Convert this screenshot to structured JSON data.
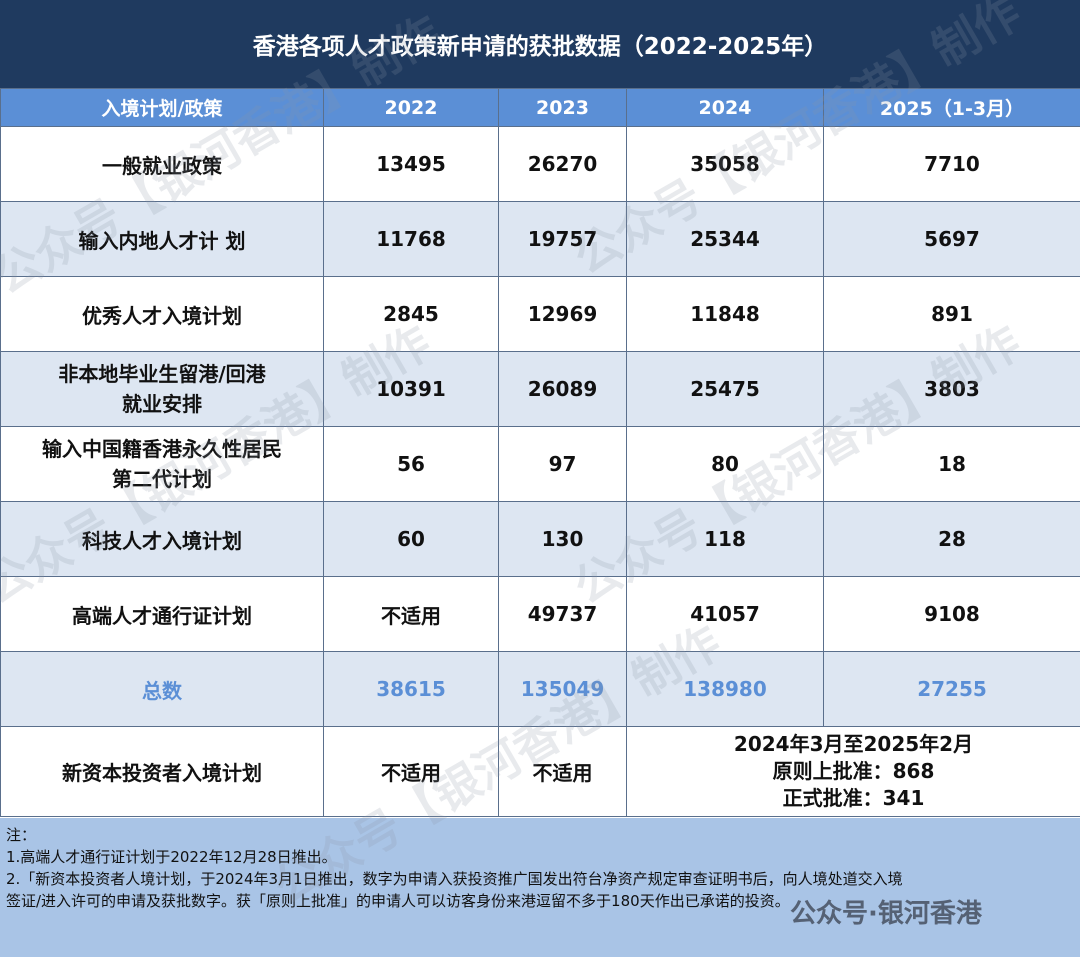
{
  "title": "香港各项人才政策新申请的获批数据（2022-2025年）",
  "table": {
    "headers": [
      "入境计划/政策",
      "2022",
      "2023",
      "2024",
      "2025（1-3月）"
    ],
    "rows": [
      {
        "name": "一般就业政策",
        "y2022": "13495",
        "y2023": "26270",
        "y2024": "35058",
        "y2025": "7710"
      },
      {
        "name": "输入内地人才计 划",
        "y2022": "11768",
        "y2023": "19757",
        "y2024": "25344",
        "y2025": "5697"
      },
      {
        "name": "优秀人才入境计划",
        "y2022": "2845",
        "y2023": "12969",
        "y2024": "11848",
        "y2025": "891"
      },
      {
        "name_line1": "非本地毕业生留港/回港",
        "name_line2": "就业安排",
        "y2022": "10391",
        "y2023": "26089",
        "y2024": "25475",
        "y2025": "3803"
      },
      {
        "name_line1": "输入中国籍香港永久性居民",
        "name_line2": "第二代计划",
        "y2022": "56",
        "y2023": "97",
        "y2024": "80",
        "y2025": "18"
      },
      {
        "name": "科技人才入境计划",
        "y2022": "60",
        "y2023": "130",
        "y2024": "118",
        "y2025": "28"
      },
      {
        "name": "高端人才通行证计划",
        "y2022": "不适用",
        "y2023": "49737",
        "y2024": "41057",
        "y2025": "9108"
      }
    ],
    "total": {
      "name": "总数",
      "y2022": "38615",
      "y2023": "135049",
      "y2024": "138980",
      "y2025": "27255"
    },
    "investor": {
      "name": "新资本投资者入境计划",
      "y2022": "不适用",
      "y2023": "不适用",
      "detail_line1": "2024年3月至2025年2月",
      "detail_line2": "原则上批准：868",
      "detail_line3": "正式批准：341"
    }
  },
  "notes": {
    "heading": "注：",
    "line1": "1.高端人才通行证计划于2022年12月28日推出。",
    "line2": "2.「新资本投资者人境计划，于2024年3月1日推出，数字为申请入获投资推广国发出符台净资产规定审查证明书后，向人境处道交入境",
    "line3": "签证/进入许可的申请及获批数字。获「原则上批准」的申请人可以访客身份来港逗留不多于180天作出已承诺的投资。"
  },
  "watermark": "公众号【银河香港】制作",
  "footer_brand": "公众号·银河香港",
  "colors": {
    "title_bg": "#1f3a5f",
    "header_bg": "#5b8fd6",
    "row_alt_bg": "#dde6f2",
    "total_text": "#5b8fd6",
    "notes_bg": "#a9c4e6"
  }
}
